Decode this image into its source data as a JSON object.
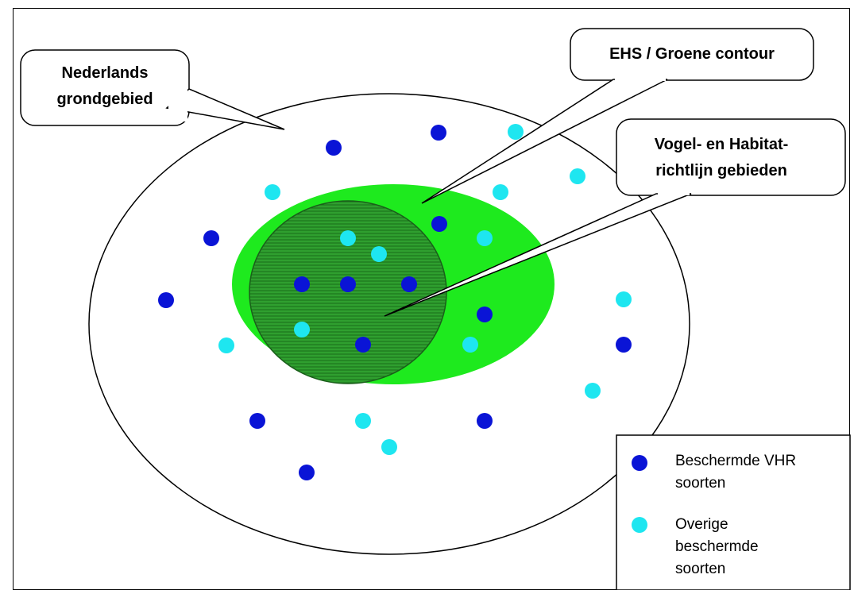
{
  "callouts": {
    "nl": {
      "line1": "Nederlands",
      "line2": "grondgebied"
    },
    "ehs": {
      "line1": "EHS / Groene contour"
    },
    "vhr": {
      "line1": "Vogel- en Habitat-",
      "line2": "richtlijn gebieden"
    }
  },
  "legend": {
    "dark": {
      "line1": "Beschermde VHR",
      "line2": "soorten",
      "color": "#0a14d6"
    },
    "light": {
      "line1": "Overige",
      "line2": "beschermde",
      "line3": "soorten",
      "color": "#1ee6f0"
    }
  },
  "colors": {
    "ehs_green": "#1eea1e",
    "vhr_green": "#2e9a2e",
    "outline": "#000000"
  }
}
